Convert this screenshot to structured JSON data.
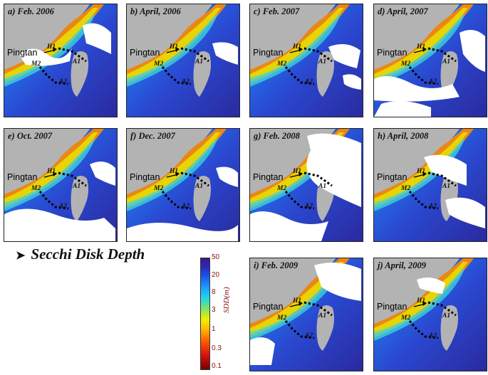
{
  "heading": "Secchi Disk Depth",
  "colorbar": {
    "unit": "SDD(m)",
    "ticks": [
      "50",
      "20",
      "8",
      "3",
      "1",
      "0.3",
      "0.1"
    ]
  },
  "labels": {
    "pingtan": "Pingtan",
    "h1": "H1",
    "m2": "M2",
    "a1": "A1",
    "a2": "A2"
  },
  "panels": [
    {
      "label": "a) Feb. 2006"
    },
    {
      "label": "b) April, 2006"
    },
    {
      "label": "c) Feb. 2007"
    },
    {
      "label": "d) April, 2007"
    },
    {
      "label": "e) Oct. 2007"
    },
    {
      "label": "f) Dec. 2007"
    },
    {
      "label": "g) Feb. 2008"
    },
    {
      "label": "h) April, 2008"
    },
    {
      "label": "i) Feb. 2009"
    },
    {
      "label": "j) April, 2009"
    }
  ]
}
